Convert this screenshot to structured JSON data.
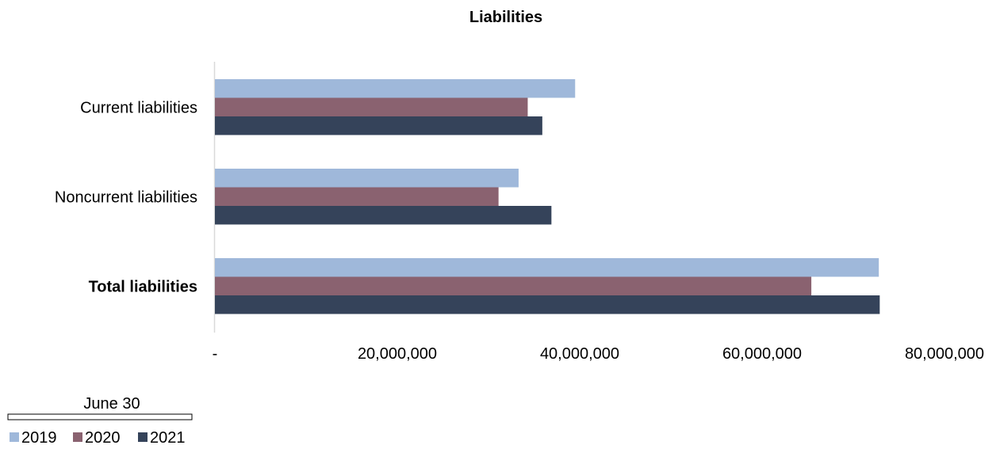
{
  "chart_data": {
    "type": "bar",
    "orientation": "horizontal",
    "title": "Liabilities",
    "categories": [
      "Current liabilities",
      "Noncurrent liabilities",
      "Total liabilities"
    ],
    "category_bold": [
      false,
      false,
      true
    ],
    "series": [
      {
        "name": "2019",
        "color": "#9fb8da",
        "values": [
          39500000,
          33300000,
          72800000
        ]
      },
      {
        "name": "2020",
        "color": "#8a6270",
        "values": [
          34300000,
          31100000,
          65400000
        ]
      },
      {
        "name": "2021",
        "color": "#35435a",
        "values": [
          35900000,
          36900000,
          72900000
        ]
      }
    ],
    "xlim": [
      0,
      80000000
    ],
    "x_ticks": [
      0,
      20000000,
      40000000,
      60000000,
      80000000
    ],
    "x_tick_labels": [
      "-",
      "20,000,000",
      "40,000,000",
      "60,000,000",
      "80,000,000"
    ],
    "legend_title": "June 30",
    "legend_position": "bottom-left",
    "grid": false
  }
}
